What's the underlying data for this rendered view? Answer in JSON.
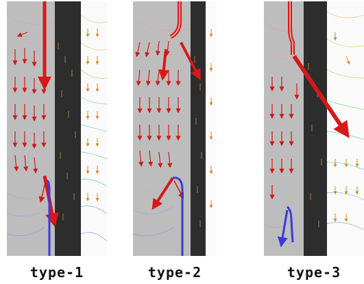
{
  "panels": [
    {
      "id": "type-1",
      "label": "type-1"
    },
    {
      "id": "type-2",
      "label": "type-2"
    },
    {
      "id": "type-3",
      "label": "type-3"
    }
  ],
  "colors": {
    "channel": "#bdbdbd",
    "electrode": "#2d2d2d",
    "field_bg": "#fafafa",
    "arrow": "#cc1a1a",
    "wire": "#3a3ad8"
  }
}
